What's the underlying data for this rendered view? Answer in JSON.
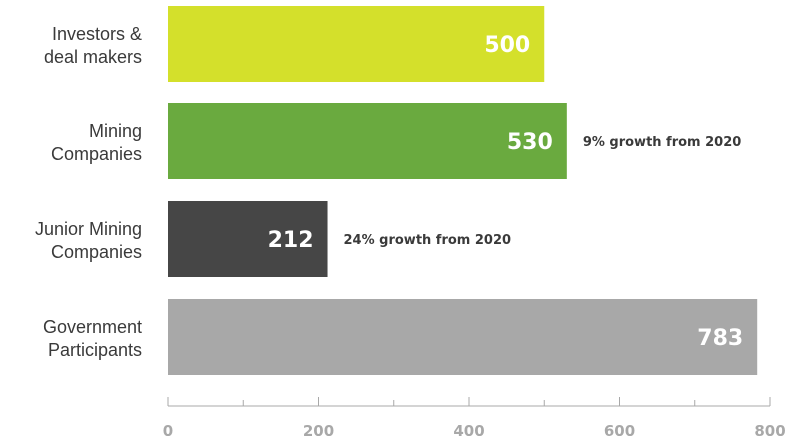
{
  "chart_data": {
    "type": "bar",
    "orientation": "horizontal",
    "categories": [
      [
        "Investors &",
        "deal makers"
      ],
      [
        "Mining",
        "Companies"
      ],
      [
        "Junior Mining",
        "Companies"
      ],
      [
        "Government",
        "Participants"
      ]
    ],
    "values": [
      500,
      530,
      212,
      783
    ],
    "colors": [
      "#d4e02b",
      "#6aaa3f",
      "#464646",
      "#a8a8a8"
    ],
    "annotations": [
      "",
      "9% growth from 2020",
      "24% growth from 2020",
      ""
    ],
    "xlim": [
      0,
      800
    ],
    "ticks": [
      0,
      200,
      400,
      600,
      800
    ],
    "minor_step": 100,
    "grid": false,
    "title": "",
    "xlabel": "",
    "ylabel": ""
  }
}
